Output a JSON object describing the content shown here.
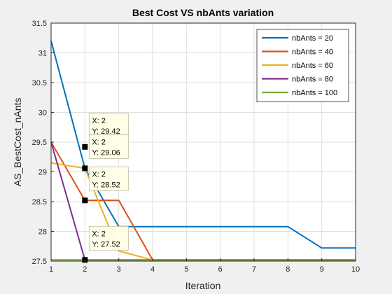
{
  "chart_data": {
    "type": "line",
    "title": "Best Cost VS nbAnts variation",
    "xlabel": "Iteration",
    "ylabel": "AS_BestCost_nAnts",
    "xlim": [
      1,
      10
    ],
    "ylim": [
      27.5,
      31.5
    ],
    "grid": true,
    "legend_position": "top-right",
    "x": [
      1,
      2,
      3,
      4,
      5,
      6,
      7,
      8,
      9,
      10
    ],
    "x_ticks": [
      1,
      2,
      3,
      4,
      5,
      6,
      7,
      8,
      9,
      10
    ],
    "y_ticks": [
      27.5,
      28,
      28.5,
      29,
      29.5,
      30,
      30.5,
      31,
      31.5
    ],
    "series": [
      {
        "name": "nbAnts = 20",
        "color": "#0072BD",
        "values": [
          31.2,
          29.06,
          28.08,
          28.08,
          28.08,
          28.08,
          28.08,
          28.08,
          27.72,
          27.72
        ]
      },
      {
        "name": "nbAnts = 40",
        "color": "#D95319",
        "values": [
          29.5,
          28.52,
          28.52,
          27.52,
          27.52,
          27.52,
          27.52,
          27.52,
          27.52,
          27.52
        ]
      },
      {
        "name": "nbAnts = 60",
        "color": "#EDB120",
        "values": [
          29.15,
          29.06,
          27.67,
          27.52,
          27.52,
          27.52,
          27.52,
          27.52,
          27.52,
          27.52
        ]
      },
      {
        "name": "nbAnts = 80",
        "color": "#7E2F8E",
        "values": [
          29.5,
          27.52,
          27.52,
          27.52,
          27.52,
          27.52,
          27.52,
          27.52,
          27.52,
          27.52
        ]
      },
      {
        "name": "nbAnts = 100",
        "color": "#77AC30",
        "values": [
          27.52,
          27.52,
          27.52,
          27.52,
          27.52,
          27.52,
          27.52,
          27.52,
          27.52,
          27.52
        ]
      }
    ],
    "datatips": [
      {
        "x": 2,
        "y": 29.42,
        "x_text": "X: 2",
        "y_text": "Y: 29.42"
      },
      {
        "x": 2,
        "y": 29.06,
        "x_text": "X: 2",
        "y_text": "Y: 29.06"
      },
      {
        "x": 2,
        "y": 28.52,
        "x_text": "X: 2",
        "y_text": "Y: 28.52"
      },
      {
        "x": 2,
        "y": 27.52,
        "x_text": "X: 2",
        "y_text": "Y: 27.52"
      }
    ]
  }
}
